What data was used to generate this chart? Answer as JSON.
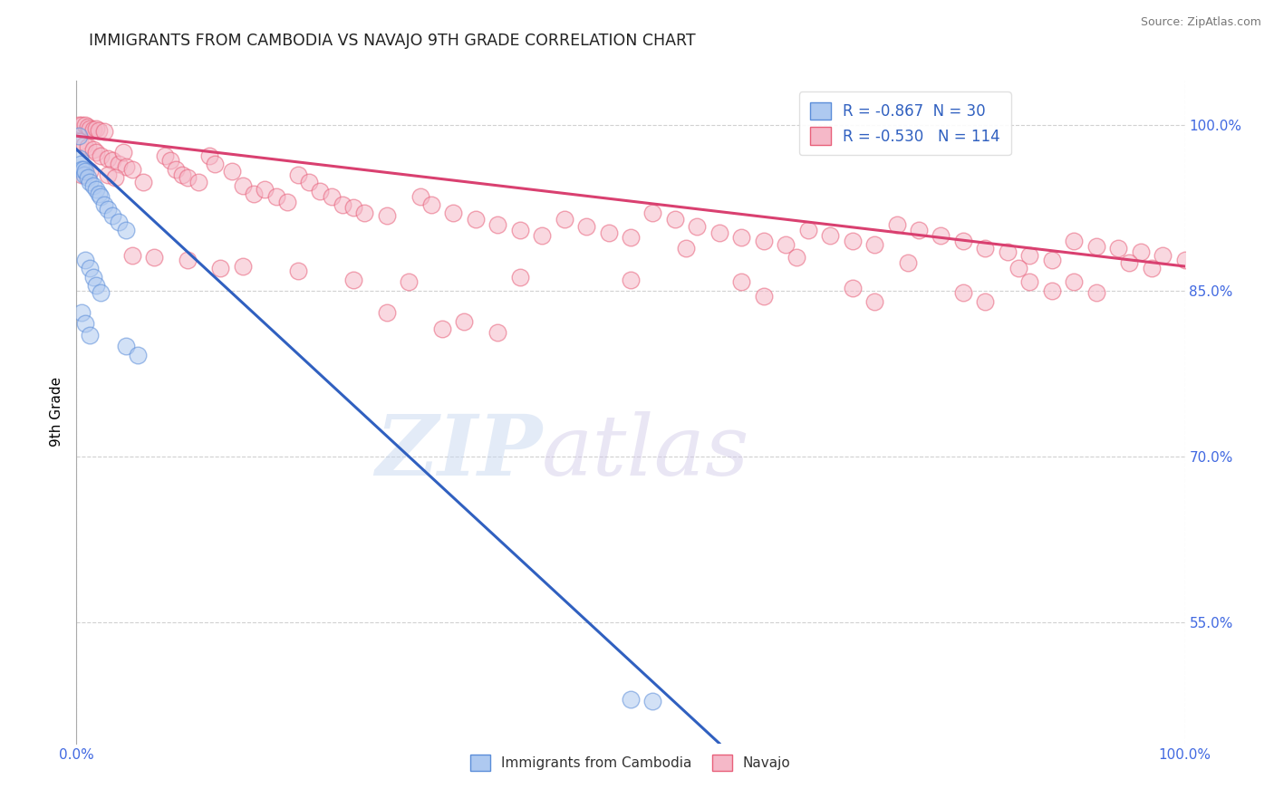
{
  "title": "IMMIGRANTS FROM CAMBODIA VS NAVAJO 9TH GRADE CORRELATION CHART",
  "source": "Source: ZipAtlas.com",
  "ylabel": "9th Grade",
  "y_ticks": [
    "55.0%",
    "70.0%",
    "85.0%",
    "100.0%"
  ],
  "y_tick_values": [
    0.55,
    0.7,
    0.85,
    1.0
  ],
  "xlim": [
    0.0,
    1.0
  ],
  "ylim": [
    0.44,
    1.04
  ],
  "legend_r_cambodia": "-0.867",
  "legend_n_cambodia": "30",
  "legend_r_navajo": "-0.530",
  "legend_n_navajo": "114",
  "blue_fill": "#aec9f0",
  "pink_fill": "#f5b8c8",
  "blue_edge": "#5b8dd9",
  "pink_edge": "#e8607a",
  "blue_line_color": "#3060c0",
  "pink_line_color": "#d94070",
  "blue_scatter": [
    [
      0.002,
      0.99
    ],
    [
      0.003,
      0.97
    ],
    [
      0.004,
      0.965
    ],
    [
      0.005,
      0.96
    ],
    [
      0.006,
      0.96
    ],
    [
      0.007,
      0.955
    ],
    [
      0.008,
      0.958
    ],
    [
      0.01,
      0.952
    ],
    [
      0.012,
      0.948
    ],
    [
      0.015,
      0.945
    ],
    [
      0.018,
      0.942
    ],
    [
      0.02,
      0.938
    ],
    [
      0.022,
      0.935
    ],
    [
      0.025,
      0.928
    ],
    [
      0.028,
      0.924
    ],
    [
      0.032,
      0.918
    ],
    [
      0.038,
      0.912
    ],
    [
      0.045,
      0.905
    ],
    [
      0.008,
      0.878
    ],
    [
      0.012,
      0.87
    ],
    [
      0.015,
      0.862
    ],
    [
      0.018,
      0.855
    ],
    [
      0.022,
      0.848
    ],
    [
      0.005,
      0.83
    ],
    [
      0.008,
      0.82
    ],
    [
      0.012,
      0.81
    ],
    [
      0.045,
      0.8
    ],
    [
      0.055,
      0.792
    ],
    [
      0.5,
      0.48
    ],
    [
      0.52,
      0.478
    ]
  ],
  "pink_scatter": [
    [
      0.002,
      1.0
    ],
    [
      0.005,
      1.0
    ],
    [
      0.008,
      1.0
    ],
    [
      0.01,
      0.998
    ],
    [
      0.012,
      0.997
    ],
    [
      0.015,
      0.996
    ],
    [
      0.018,
      0.997
    ],
    [
      0.02,
      0.995
    ],
    [
      0.025,
      0.994
    ],
    [
      0.003,
      0.985
    ],
    [
      0.007,
      0.982
    ],
    [
      0.01,
      0.98
    ],
    [
      0.015,
      0.978
    ],
    [
      0.018,
      0.975
    ],
    [
      0.022,
      0.972
    ],
    [
      0.028,
      0.97
    ],
    [
      0.032,
      0.968
    ],
    [
      0.038,
      0.965
    ],
    [
      0.042,
      0.975
    ],
    [
      0.045,
      0.962
    ],
    [
      0.05,
      0.96
    ],
    [
      0.005,
      0.955
    ],
    [
      0.012,
      0.958
    ],
    [
      0.028,
      0.955
    ],
    [
      0.035,
      0.952
    ],
    [
      0.06,
      0.948
    ],
    [
      0.08,
      0.972
    ],
    [
      0.085,
      0.968
    ],
    [
      0.09,
      0.96
    ],
    [
      0.095,
      0.955
    ],
    [
      0.1,
      0.952
    ],
    [
      0.11,
      0.948
    ],
    [
      0.12,
      0.972
    ],
    [
      0.125,
      0.965
    ],
    [
      0.14,
      0.958
    ],
    [
      0.15,
      0.945
    ],
    [
      0.16,
      0.938
    ],
    [
      0.17,
      0.942
    ],
    [
      0.18,
      0.935
    ],
    [
      0.19,
      0.93
    ],
    [
      0.2,
      0.955
    ],
    [
      0.21,
      0.948
    ],
    [
      0.22,
      0.94
    ],
    [
      0.23,
      0.935
    ],
    [
      0.24,
      0.928
    ],
    [
      0.25,
      0.925
    ],
    [
      0.26,
      0.92
    ],
    [
      0.28,
      0.918
    ],
    [
      0.31,
      0.935
    ],
    [
      0.32,
      0.928
    ],
    [
      0.34,
      0.92
    ],
    [
      0.36,
      0.915
    ],
    [
      0.38,
      0.91
    ],
    [
      0.4,
      0.905
    ],
    [
      0.42,
      0.9
    ],
    [
      0.44,
      0.915
    ],
    [
      0.46,
      0.908
    ],
    [
      0.48,
      0.902
    ],
    [
      0.5,
      0.898
    ],
    [
      0.52,
      0.92
    ],
    [
      0.54,
      0.915
    ],
    [
      0.56,
      0.908
    ],
    [
      0.58,
      0.902
    ],
    [
      0.6,
      0.898
    ],
    [
      0.62,
      0.895
    ],
    [
      0.64,
      0.892
    ],
    [
      0.66,
      0.905
    ],
    [
      0.68,
      0.9
    ],
    [
      0.7,
      0.895
    ],
    [
      0.72,
      0.892
    ],
    [
      0.74,
      0.91
    ],
    [
      0.76,
      0.905
    ],
    [
      0.78,
      0.9
    ],
    [
      0.8,
      0.895
    ],
    [
      0.82,
      0.888
    ],
    [
      0.84,
      0.885
    ],
    [
      0.86,
      0.882
    ],
    [
      0.88,
      0.878
    ],
    [
      0.9,
      0.895
    ],
    [
      0.92,
      0.89
    ],
    [
      0.94,
      0.888
    ],
    [
      0.96,
      0.885
    ],
    [
      0.98,
      0.882
    ],
    [
      1.0,
      0.878
    ],
    [
      0.95,
      0.875
    ],
    [
      0.97,
      0.87
    ],
    [
      0.85,
      0.87
    ],
    [
      0.75,
      0.875
    ],
    [
      0.65,
      0.88
    ],
    [
      0.55,
      0.888
    ],
    [
      0.13,
      0.87
    ],
    [
      0.07,
      0.88
    ],
    [
      0.6,
      0.858
    ],
    [
      0.62,
      0.845
    ],
    [
      0.7,
      0.852
    ],
    [
      0.72,
      0.84
    ],
    [
      0.8,
      0.848
    ],
    [
      0.82,
      0.84
    ],
    [
      0.86,
      0.858
    ],
    [
      0.88,
      0.85
    ],
    [
      0.9,
      0.858
    ],
    [
      0.92,
      0.848
    ],
    [
      0.5,
      0.86
    ],
    [
      0.4,
      0.862
    ],
    [
      0.2,
      0.868
    ],
    [
      0.15,
      0.872
    ],
    [
      0.3,
      0.858
    ],
    [
      0.25,
      0.86
    ],
    [
      0.1,
      0.878
    ],
    [
      0.05,
      0.882
    ],
    [
      0.35,
      0.822
    ],
    [
      0.38,
      0.812
    ],
    [
      0.28,
      0.83
    ],
    [
      0.33,
      0.815
    ]
  ],
  "blue_line": {
    "x0": 0.0,
    "y0": 0.978,
    "x1": 0.58,
    "y1": 0.44
  },
  "pink_line": {
    "x0": 0.0,
    "y0": 0.99,
    "x1": 1.0,
    "y1": 0.872
  },
  "watermark_zip": "ZIP",
  "watermark_atlas": "atlas",
  "background_color": "#ffffff",
  "grid_color": "#cccccc"
}
